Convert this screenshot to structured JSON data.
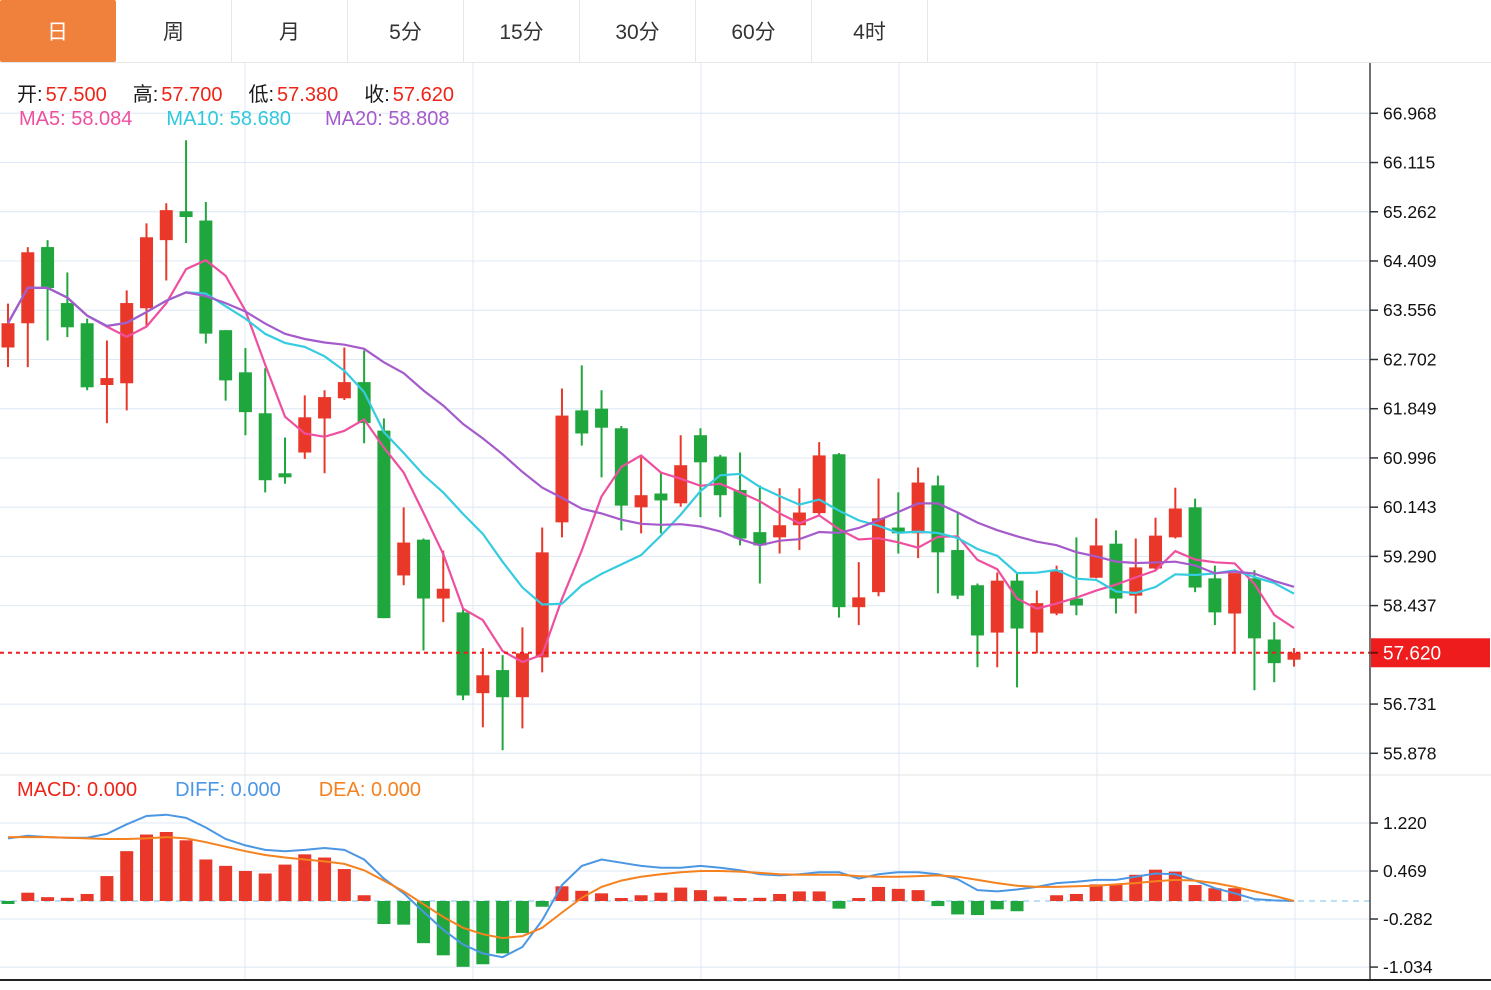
{
  "tab_bar": {
    "items": [
      {
        "label": "日",
        "active": true
      },
      {
        "label": "周",
        "active": false
      },
      {
        "label": "月",
        "active": false
      },
      {
        "label": "5分",
        "active": false
      },
      {
        "label": "15分",
        "active": false
      },
      {
        "label": "30分",
        "active": false
      },
      {
        "label": "60分",
        "active": false
      },
      {
        "label": "4时",
        "active": false
      }
    ]
  },
  "price_info": {
    "open_label": "开:",
    "open_value": "57.500",
    "high_label": "高:",
    "high_value": "57.700",
    "low_label": "低:",
    "low_value": "57.380",
    "close_label": "收:",
    "close_value": "57.620"
  },
  "ma_info": {
    "ma5_label": "MA5:",
    "ma5_value": "58.084",
    "ma10_label": "MA10:",
    "ma10_value": "58.680",
    "ma20_label": "MA20:",
    "ma20_value": "58.808"
  },
  "macd_info": {
    "macd_label": "MACD:",
    "macd_value": "0.000",
    "diff_label": "DIFF:",
    "diff_value": "0.000",
    "dea_label": "DEA:",
    "dea_value": "0.000"
  },
  "colors": {
    "up": "#e9382a",
    "down": "#1fa63c",
    "tab_active": "#f0813c",
    "ma5": "#ef4f9f",
    "ma10": "#35cbe0",
    "ma20": "#a55bcb",
    "diff": "#4b97e3",
    "dea": "#f5821f",
    "current_price": "#ee1c1c",
    "grid": "#dce8f5",
    "zero_dash": "#a5d5f2",
    "axis_line": "#444444",
    "axis_text": "#111111"
  },
  "chart_data": [
    {
      "type": "candlestick",
      "pane": "price",
      "title": "",
      "y_ticks": [
        66.968,
        66.115,
        65.262,
        64.409,
        63.556,
        62.702,
        61.849,
        60.996,
        60.143,
        59.29,
        58.437,
        56.731,
        55.878
      ],
      "ylim": [
        55.5,
        67.3
      ],
      "current_price": 57.62,
      "ma_periods": [
        5,
        10,
        20
      ],
      "ohlc": [
        [
          62.91,
          63.67,
          62.57,
          63.33
        ],
        [
          63.33,
          64.65,
          62.57,
          64.56
        ],
        [
          64.65,
          64.77,
          63.03,
          63.94
        ],
        [
          63.68,
          64.21,
          63.09,
          63.26
        ],
        [
          63.33,
          63.41,
          62.17,
          62.22
        ],
        [
          62.26,
          63.03,
          61.6,
          62.38
        ],
        [
          62.29,
          63.9,
          61.82,
          63.68
        ],
        [
          63.59,
          65.06,
          63.26,
          64.82
        ],
        [
          64.77,
          65.41,
          64.07,
          65.29
        ],
        [
          65.27,
          66.5,
          64.72,
          65.17
        ],
        [
          65.11,
          65.43,
          62.98,
          63.15
        ],
        [
          63.21,
          63.21,
          61.99,
          62.34
        ],
        [
          62.48,
          62.9,
          61.39,
          61.79
        ],
        [
          61.77,
          62.55,
          60.4,
          60.61
        ],
        [
          60.73,
          61.35,
          60.55,
          60.66
        ],
        [
          61.09,
          62.08,
          60.98,
          61.7
        ],
        [
          61.68,
          62.17,
          60.73,
          62.05
        ],
        [
          62.03,
          62.91,
          62.0,
          62.31
        ],
        [
          62.31,
          62.86,
          61.25,
          61.6
        ],
        [
          61.47,
          61.68,
          58.22,
          58.22
        ],
        [
          58.96,
          60.14,
          58.79,
          59.53
        ],
        [
          59.58,
          59.6,
          57.66,
          58.56
        ],
        [
          58.56,
          59.39,
          58.15,
          58.73
        ],
        [
          58.32,
          58.4,
          56.8,
          56.88
        ],
        [
          56.92,
          57.7,
          56.33,
          57.23
        ],
        [
          57.32,
          57.58,
          55.93,
          56.85
        ],
        [
          56.85,
          58.06,
          56.31,
          57.61
        ],
        [
          57.54,
          59.79,
          57.28,
          59.36
        ],
        [
          59.88,
          62.2,
          59.62,
          61.73
        ],
        [
          61.82,
          62.6,
          61.21,
          61.42
        ],
        [
          61.85,
          62.17,
          60.66,
          61.52
        ],
        [
          61.51,
          61.55,
          59.74,
          60.17
        ],
        [
          60.14,
          61.01,
          59.69,
          60.35
        ],
        [
          60.38,
          60.75,
          59.69,
          60.26
        ],
        [
          60.21,
          61.39,
          60.15,
          60.87
        ],
        [
          61.39,
          61.51,
          59.97,
          60.92
        ],
        [
          61.02,
          61.05,
          59.97,
          60.35
        ],
        [
          60.44,
          61.09,
          59.48,
          59.6
        ],
        [
          59.71,
          60.52,
          58.82,
          59.48
        ],
        [
          59.62,
          60.47,
          59.34,
          59.83
        ],
        [
          59.83,
          60.47,
          59.4,
          60.05
        ],
        [
          60.04,
          61.27,
          60.0,
          61.04
        ],
        [
          61.06,
          61.08,
          58.23,
          58.41
        ],
        [
          58.41,
          59.19,
          58.1,
          58.58
        ],
        [
          58.67,
          60.64,
          58.6,
          59.95
        ],
        [
          59.79,
          60.4,
          59.34,
          59.69
        ],
        [
          59.69,
          60.83,
          59.26,
          60.57
        ],
        [
          60.52,
          60.69,
          58.65,
          59.36
        ],
        [
          59.4,
          60.04,
          58.55,
          58.61
        ],
        [
          58.79,
          58.82,
          57.37,
          57.92
        ],
        [
          57.97,
          59.01,
          57.37,
          58.87
        ],
        [
          58.87,
          59.01,
          57.02,
          58.04
        ],
        [
          57.97,
          58.7,
          57.61,
          58.48
        ],
        [
          58.3,
          59.13,
          58.27,
          59.05
        ],
        [
          58.56,
          59.62,
          58.27,
          58.44
        ],
        [
          58.92,
          59.95,
          58.91,
          59.48
        ],
        [
          59.51,
          59.74,
          58.3,
          58.56
        ],
        [
          58.61,
          59.6,
          58.3,
          59.1
        ],
        [
          59.08,
          59.96,
          59.05,
          59.65
        ],
        [
          59.62,
          60.48,
          59.6,
          60.12
        ],
        [
          60.14,
          60.29,
          58.67,
          58.75
        ],
        [
          58.91,
          59.13,
          58.1,
          58.32
        ],
        [
          58.3,
          59.0,
          57.63,
          59.0
        ],
        [
          58.91,
          59.05,
          56.97,
          57.87
        ],
        [
          57.85,
          58.15,
          57.11,
          57.44
        ],
        [
          57.5,
          57.7,
          57.38,
          57.62
        ]
      ]
    },
    {
      "type": "bar",
      "pane": "macd",
      "title": "MACD",
      "y_ticks": [
        1.22,
        0.469,
        -0.282,
        -1.034
      ],
      "histogram": [
        -0.03,
        0.13,
        0.06,
        0.05,
        0.11,
        0.39,
        0.78,
        1.04,
        1.08,
        0.95,
        0.65,
        0.55,
        0.47,
        0.43,
        0.57,
        0.73,
        0.68,
        0.5,
        0.09,
        -0.36,
        -0.37,
        -0.66,
        -0.85,
        -1.03,
        -0.99,
        -0.82,
        -0.5,
        -0.09,
        0.23,
        0.16,
        0.12,
        0.02,
        0.09,
        0.13,
        0.21,
        0.17,
        0.07,
        0.01,
        0.05,
        0.11,
        0.15,
        0.15,
        -0.12,
        0.04,
        0.22,
        0.19,
        0.17,
        -0.08,
        -0.21,
        -0.22,
        -0.13,
        -0.16,
        0.0,
        0.09,
        0.11,
        0.26,
        0.25,
        0.41,
        0.49,
        0.46,
        0.25,
        0.2,
        0.2,
        0.0,
        0.0,
        0.0
      ],
      "diff": [
        0.98,
        1.02,
        1.0,
        0.99,
        0.99,
        1.05,
        1.2,
        1.33,
        1.35,
        1.3,
        1.15,
        0.97,
        0.87,
        0.8,
        0.78,
        0.8,
        0.83,
        0.8,
        0.65,
        0.35,
        0.12,
        -0.17,
        -0.45,
        -0.68,
        -0.82,
        -0.88,
        -0.72,
        -0.3,
        0.25,
        0.55,
        0.65,
        0.6,
        0.55,
        0.52,
        0.52,
        0.55,
        0.52,
        0.48,
        0.42,
        0.4,
        0.42,
        0.45,
        0.45,
        0.35,
        0.42,
        0.45,
        0.45,
        0.42,
        0.34,
        0.17,
        0.15,
        0.18,
        0.22,
        0.28,
        0.3,
        0.33,
        0.33,
        0.38,
        0.43,
        0.42,
        0.32,
        0.2,
        0.12,
        0.03,
        0.01,
        0.0
      ],
      "dea": [
        1.0,
        1.0,
        1.0,
        0.99,
        0.98,
        0.97,
        0.97,
        0.98,
        1.0,
        0.98,
        0.92,
        0.85,
        0.78,
        0.72,
        0.68,
        0.65,
        0.62,
        0.58,
        0.48,
        0.32,
        0.15,
        -0.05,
        -0.25,
        -0.42,
        -0.52,
        -0.58,
        -0.55,
        -0.42,
        -0.18,
        0.05,
        0.22,
        0.32,
        0.38,
        0.42,
        0.45,
        0.47,
        0.47,
        0.46,
        0.44,
        0.42,
        0.41,
        0.41,
        0.41,
        0.39,
        0.38,
        0.38,
        0.39,
        0.4,
        0.38,
        0.33,
        0.28,
        0.24,
        0.22,
        0.22,
        0.23,
        0.24,
        0.26,
        0.28,
        0.31,
        0.33,
        0.32,
        0.28,
        0.22,
        0.15,
        0.08,
        0.0
      ]
    }
  ]
}
